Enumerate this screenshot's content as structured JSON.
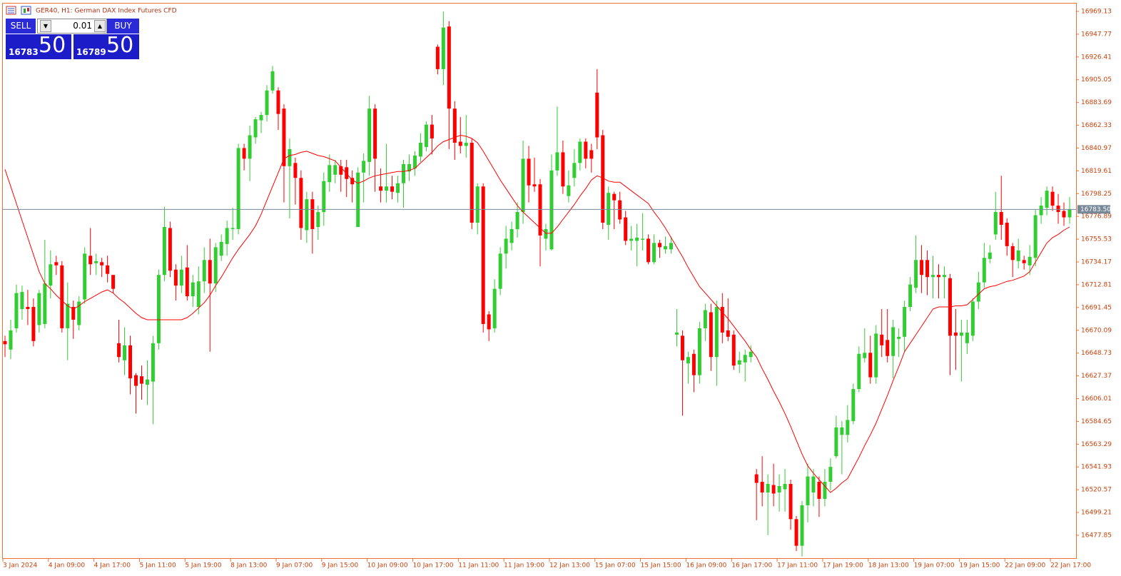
{
  "header": {
    "title": "GER40, H1:  German DAX Index Futures CFD"
  },
  "trade_panel": {
    "sell": "SELL",
    "lot": "0.01",
    "buy": "BUY",
    "bid_main": "16783",
    "bid_pips": "50",
    "ask_main": "16789",
    "ask_pips": "50"
  },
  "chart_data": {
    "type": "candlestick",
    "categories": [
      "3 Jan 2024",
      null,
      null,
      null,
      null,
      null,
      null,
      null,
      "4 Jan 09:00",
      null,
      null,
      null,
      null,
      null,
      null,
      null,
      "4 Jan 17:00",
      null,
      null,
      null,
      null,
      null,
      null,
      null,
      "5 Jan 11:00",
      null,
      null,
      null,
      null,
      null,
      null,
      null,
      "5 Jan 19:00",
      null,
      null,
      null,
      null,
      null,
      null,
      null,
      "8 Jan 13:00",
      null,
      null,
      null,
      null,
      null,
      null,
      null,
      "9 Jan 07:00",
      null,
      null,
      null,
      null,
      null,
      null,
      null,
      "9 Jan 15:00",
      null,
      null,
      null,
      null,
      null,
      null,
      null,
      "10 Jan 09:00",
      null,
      null,
      null,
      null,
      null,
      null,
      null,
      "10 Jan 17:00",
      null,
      null,
      null,
      null,
      null,
      null,
      null,
      "11 Jan 11:00",
      null,
      null,
      null,
      null,
      null,
      null,
      null,
      "11 Jan 19:00",
      null,
      null,
      null,
      null,
      null,
      null,
      null,
      "12 Jan 13:00",
      null,
      null,
      null,
      null,
      null,
      null,
      null,
      "15 Jan 07:00",
      null,
      null,
      null,
      null,
      null,
      null,
      null,
      "15 Jan 15:00",
      null,
      null,
      null,
      null,
      null,
      null,
      null,
      "16 Jan 09:00",
      null,
      null,
      null,
      null,
      null,
      null,
      null,
      "16 Jan 17:00",
      null,
      null,
      null,
      null,
      null,
      null,
      null,
      "17 Jan 11:00",
      null,
      null,
      null,
      null,
      null,
      null,
      null,
      "17 Jan 19:00",
      null,
      null,
      null,
      null,
      null,
      null,
      null,
      "18 Jan 13:00",
      null,
      null,
      null,
      null,
      null,
      null,
      null,
      "19 Jan 07:00",
      null,
      null,
      null,
      null,
      null,
      null,
      null,
      "19 Jan 15:00",
      null,
      null,
      null,
      null,
      null,
      null,
      null,
      "22 Jan 09:00",
      null,
      null,
      null,
      null,
      null,
      null,
      null,
      "22 Jan 17:00",
      null,
      null,
      null
    ],
    "open": [
      16660,
      16652,
      16672,
      16690,
      16692,
      16692,
      16675,
      16676,
      16712,
      16734,
      16731,
      16672,
      16692,
      16675,
      16699,
      16740,
      16733,
      16734,
      16731,
      16722,
      16658,
      16642,
      16656,
      16628,
      16627,
      16619,
      16622,
      16658,
      16722,
      16766,
      16727,
      16712,
      16729,
      16702,
      16692,
      16716,
      16736,
      16714,
      16740,
      16751,
      16765,
      16765,
      16841,
      16831,
      16851,
      16867,
      16872,
      16895,
      16895,
      16878,
      16824,
      16827,
      16813,
      16764,
      16793,
      16767,
      16781,
      16809,
      16816,
      16824,
      16823,
      16813,
      16767,
      16818,
      16828,
      16878,
      16805,
      16801,
      16805,
      16799,
      16808,
      16819,
      16822,
      16833,
      16842,
      16863,
      16936,
      16915,
      16955,
      16878,
      16847,
      16843,
      16846,
      16771,
      16805,
      16685,
      16672,
      16709,
      16742,
      16752,
      16765,
      16781,
      16831,
      16807,
      16807,
      16756,
      16746,
      16820,
      16837,
      16796,
      16813,
      16827,
      16847,
      16839,
      16893,
      16853,
      16769,
      16798,
      16792,
      16776,
      16754,
      16754,
      16755,
      16756,
      16734,
      16752,
      16746,
      16746,
      16666,
      16665,
      16639,
      16648,
      16628,
      16672,
      16687,
      16645,
      16692,
      16670,
      16666,
      16638,
      16640,
      16645,
      16535,
      16528,
      16518,
      16525,
      16518,
      16521,
      16526,
      16493,
      16468,
      16506,
      16518,
      16528,
      16512,
      16528,
      16552,
      16572,
      16572,
      16585,
      16615,
      16644,
      16649,
      16626,
      16666,
      16661,
      16646,
      16662,
      16664,
      16692,
      16710,
      16736,
      16736,
      16720,
      16722,
      16720,
      16719,
      16668,
      16665,
      16658,
      16665,
      16697,
      16715,
      16737,
      16760,
      16781,
      16771,
      16749,
      16735,
      16736,
      16731,
      16738,
      16778,
      16785,
      16800,
      16787,
      16782,
      16776
    ],
    "high": [
      16665,
      16680,
      16713,
      16712,
      16708,
      16700,
      16708,
      16755,
      16745,
      16740,
      16735,
      16715,
      16698,
      16702,
      16748,
      16766,
      16742,
      16738,
      16740,
      16722,
      16680,
      16673,
      16665,
      16630,
      16637,
      16642,
      16665,
      16727,
      16786,
      16772,
      16732,
      16740,
      16750,
      16722,
      16730,
      16748,
      16756,
      16752,
      16760,
      16773,
      16785,
      16845,
      16845,
      16862,
      16870,
      16875,
      16900,
      16918,
      16898,
      16882,
      16850,
      16832,
      16820,
      16800,
      16800,
      16787,
      16818,
      16835,
      16830,
      16830,
      16830,
      16820,
      16823,
      16836,
      16890,
      16882,
      16822,
      16845,
      16815,
      16815,
      16830,
      16835,
      16838,
      16855,
      16866,
      16872,
      16938,
      16969,
      16960,
      16885,
      16870,
      16872,
      16850,
      16808,
      16808,
      16688,
      16718,
      16748,
      16768,
      16772,
      16790,
      16848,
      16843,
      16832,
      16812,
      16770,
      16835,
      16880,
      16848,
      16820,
      16840,
      16850,
      16850,
      16845,
      16915,
      16858,
      16805,
      16800,
      16800,
      16782,
      16768,
      16770,
      16780,
      16760,
      16760,
      16755,
      16758,
      16758,
      16690,
      16670,
      16650,
      16652,
      16678,
      16695,
      16695,
      16698,
      16705,
      16700,
      16670,
      16650,
      16652,
      16656,
      16540,
      16552,
      16535,
      16545,
      16535,
      16540,
      16530,
      16496,
      16510,
      16545,
      16540,
      16533,
      16540,
      16550,
      16590,
      16585,
      16600,
      16620,
      16655,
      16672,
      16665,
      16675,
      16690,
      16690,
      16680,
      16672,
      16698,
      16720,
      16759,
      16750,
      16745,
      16740,
      16732,
      16730,
      16723,
      16690,
      16680,
      16680,
      16700,
      16725,
      16752,
      16750,
      16800,
      16815,
      16775,
      16752,
      16756,
      16740,
      16750,
      16783,
      16795,
      16805,
      16805,
      16798,
      16790,
      16795
    ],
    "low": [
      16645,
      16643,
      16668,
      16680,
      16675,
      16655,
      16668,
      16672,
      16700,
      16722,
      16668,
      16642,
      16662,
      16670,
      16695,
      16722,
      16722,
      16720,
      16715,
      16705,
      16640,
      16628,
      16610,
      16592,
      16605,
      16600,
      16582,
      16652,
      16716,
      16720,
      16698,
      16705,
      16698,
      16692,
      16685,
      16705,
      16650,
      16706,
      16735,
      16740,
      16755,
      16760,
      16820,
      16810,
      16845,
      16855,
      16866,
      16892,
      16858,
      16790,
      16775,
      16788,
      16755,
      16752,
      16742,
      16755,
      16768,
      16800,
      16808,
      16800,
      16795,
      16790,
      16767,
      16790,
      16815,
      16800,
      16790,
      16790,
      16793,
      16790,
      16785,
      16810,
      16815,
      16828,
      16838,
      16835,
      16910,
      16900,
      16840,
      16830,
      16836,
      16832,
      16765,
      16760,
      16668,
      16660,
      16668,
      16703,
      16728,
      16745,
      16757,
      16770,
      16790,
      16800,
      16730,
      16745,
      16745,
      16815,
      16798,
      16790,
      16805,
      16820,
      16822,
      16818,
      16840,
      16765,
      16755,
      16765,
      16770,
      16750,
      16745,
      16730,
      16745,
      16732,
      16732,
      16738,
      16742,
      16742,
      16655,
      16590,
      16620,
      16612,
      16620,
      16660,
      16632,
      16618,
      16658,
      16660,
      16633,
      16630,
      16622,
      16640,
      16492,
      16505,
      16478,
      16505,
      16500,
      16500,
      16483,
      16463,
      16458,
      16490,
      16505,
      16495,
      16505,
      16520,
      16550,
      16535,
      16565,
      16582,
      16612,
      16640,
      16620,
      16620,
      16645,
      16640,
      16625,
      16645,
      16650,
      16688,
      16705,
      16705,
      16703,
      16700,
      16700,
      16700,
      16628,
      16633,
      16622,
      16648,
      16660,
      16690,
      16710,
      16733,
      16755,
      16755,
      16740,
      16720,
      16728,
      16727,
      16722,
      16730,
      16770,
      16778,
      16782,
      16770,
      16768,
      16770
    ],
    "close": [
      16657,
      16670,
      16705,
      16706,
      16690,
      16660,
      16705,
      16714,
      16732,
      16731,
      16672,
      16695,
      16680,
      16697,
      16742,
      16732,
      16735,
      16731,
      16723,
      16709,
      16645,
      16656,
      16625,
      16618,
      16620,
      16624,
      16658,
      16722,
      16767,
      16726,
      16712,
      16727,
      16702,
      16715,
      16716,
      16736,
      16714,
      16748,
      16753,
      16766,
      16766,
      16841,
      16831,
      16853,
      16868,
      16872,
      16895,
      16913,
      16873,
      16824,
      16840,
      16813,
      16766,
      16793,
      16765,
      16781,
      16810,
      16825,
      16825,
      16816,
      16812,
      16807,
      16818,
      16829,
      16878,
      16831,
      16801,
      16805,
      16800,
      16808,
      16826,
      16826,
      16834,
      16846,
      16863,
      16850,
      16915,
      16954,
      16878,
      16846,
      16843,
      16846,
      16771,
      16805,
      16676,
      16671,
      16709,
      16742,
      16756,
      16765,
      16781,
      16831,
      16806,
      16805,
      16759,
      16765,
      16820,
      16837,
      16805,
      16806,
      16827,
      16847,
      16831,
      16831,
      16851,
      16771,
      16799,
      16792,
      16774,
      16754,
      16756,
      16757,
      16756,
      16734,
      16752,
      16748,
      16749,
      16752,
      16668,
      16642,
      16645,
      16628,
      16672,
      16689,
      16645,
      16692,
      16668,
      16664,
      16637,
      16642,
      16647,
      16650,
      16527,
      16518,
      16526,
      16517,
      16524,
      16526,
      16493,
      16468,
      16506,
      16533,
      16533,
      16512,
      16528,
      16542,
      16579,
      16579,
      16586,
      16615,
      16648,
      16649,
      16626,
      16667,
      16656,
      16646,
      16673,
      16664,
      16692,
      16713,
      16736,
      16722,
      16720,
      16722,
      16720,
      16722,
      16665,
      16665,
      16668,
      16668,
      16697,
      16715,
      16738,
      16743,
      16781,
      16769,
      16749,
      16736,
      16745,
      16733,
      16739,
      16778,
      16787,
      16801,
      16787,
      16781,
      16776,
      16783.5
    ],
    "up_color": "#32cd32",
    "down_color": "#ff0000",
    "ma": {
      "color": "#ff0000",
      "values": [
        16821,
        16805,
        16789,
        16773,
        16757,
        16741,
        16725,
        16714,
        16709,
        16703,
        16698,
        16693,
        16690,
        16693,
        16697,
        16700,
        16703,
        16706,
        16708,
        16705,
        16700,
        16696,
        16691,
        16686,
        16682,
        16680,
        16680,
        16680,
        16680,
        16680,
        16680,
        16680,
        16682,
        16686,
        16691,
        16696,
        16703,
        16712,
        16720,
        16729,
        16738,
        16746,
        16753,
        16760,
        16768,
        16779,
        16792,
        16805,
        16818,
        16831,
        16834,
        16835,
        16837,
        16838,
        16836,
        16834,
        16833,
        16831,
        16829,
        16823,
        16817,
        16811,
        16808,
        16810,
        16813,
        16815,
        16816,
        16817,
        16818,
        16819,
        16819,
        16820,
        16822,
        16827,
        16832,
        16837,
        16843,
        16847,
        16849,
        16851,
        16853,
        16852,
        16850,
        16846,
        16838,
        16829,
        16820,
        16811,
        16803,
        16795,
        16787,
        16781,
        16776,
        16771,
        16766,
        16761,
        16761,
        16767,
        16774,
        16781,
        16788,
        16796,
        16803,
        16811,
        16815,
        16813,
        16810,
        16809,
        16809,
        16805,
        16801,
        16797,
        16793,
        16789,
        16781,
        16774,
        16766,
        16757,
        16748,
        16739,
        16729,
        16720,
        16711,
        16705,
        16699,
        16693,
        16687,
        16681,
        16674,
        16667,
        16660,
        16652,
        16645,
        16634,
        16624,
        16613,
        16603,
        16592,
        16580,
        16567,
        16554,
        16543,
        16536,
        16530,
        16524,
        16518,
        16522,
        16527,
        16531,
        16541,
        16551,
        16562,
        16572,
        16583,
        16596,
        16609,
        16623,
        16636,
        16650,
        16658,
        16666,
        16674,
        16682,
        16690,
        16692,
        16692,
        16692,
        16693,
        16693,
        16694,
        16699,
        16704,
        16709,
        16711,
        16712,
        16714,
        16716,
        16717,
        16719,
        16721,
        16725,
        16734,
        16743,
        16752,
        16757,
        16760,
        16764,
        16767
      ]
    },
    "current_price": {
      "value": 16783.5,
      "label": "16783.50"
    },
    "ylim": [
      16456.4,
      16976.5
    ],
    "yticks": [
      16969.13,
      16947.77,
      16926.41,
      16905.05,
      16883.69,
      16862.33,
      16840.97,
      16819.61,
      16798.25,
      16776.89,
      16755.53,
      16734.17,
      16712.81,
      16691.45,
      16670.09,
      16648.73,
      16627.37,
      16606.01,
      16584.65,
      16563.29,
      16541.93,
      16520.57,
      16499.21,
      16477.85
    ]
  }
}
